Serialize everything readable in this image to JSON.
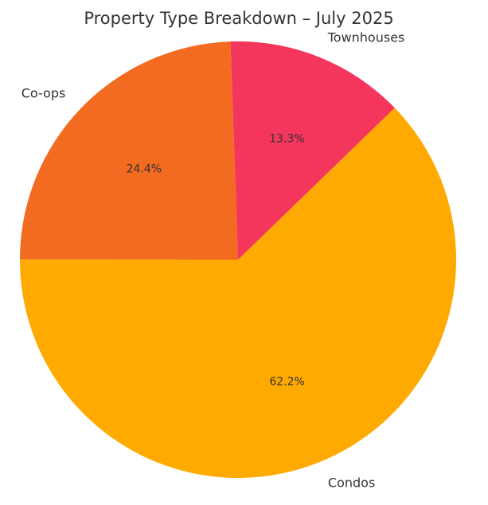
{
  "chart_data": {
    "type": "pie",
    "title": "Property Type Breakdown – July 2025",
    "start_angle_deg": 92,
    "direction": "counterclockwise",
    "slices": [
      {
        "label": "Co-ops",
        "value": 24.4,
        "pct_label": "24.4%",
        "color": "#F26B21"
      },
      {
        "label": "Condos",
        "value": 62.2,
        "pct_label": "62.2%",
        "color": "#FFAA00"
      },
      {
        "label": "Townhouses",
        "value": 13.3,
        "pct_label": "13.3%",
        "color": "#F5365C"
      }
    ]
  }
}
